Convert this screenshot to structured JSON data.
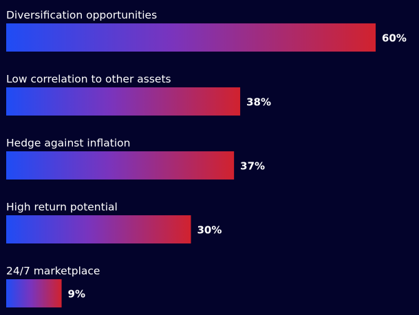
{
  "chart_data": {
    "type": "bar",
    "orientation": "horizontal",
    "categories": [
      "Diversification opportunities",
      "Low correlation to other assets",
      "Hedge against inflation",
      "High return potential",
      "24/7 marketplace"
    ],
    "values": [
      60,
      38,
      37,
      30,
      9
    ],
    "value_labels": [
      "60%",
      "38%",
      "37%",
      "30%",
      "9%"
    ],
    "unit": "%",
    "title": "",
    "xlabel": "",
    "ylabel": "",
    "xlim": [
      0,
      60
    ],
    "grid": false,
    "legend": "none",
    "colors": {
      "background": "#03032b",
      "bar_start": "#1f4cf5",
      "bar_mid": "#7a34bd",
      "bar_end": "#d1222e",
      "text": "#ffffff"
    }
  }
}
